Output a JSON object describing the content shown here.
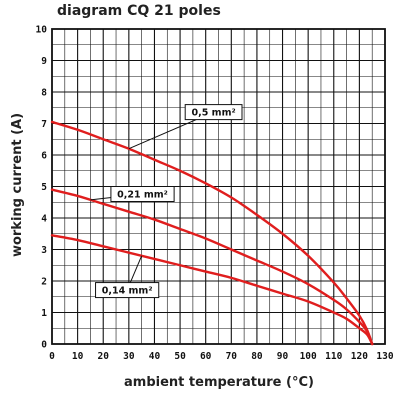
{
  "chart_data": {
    "type": "line",
    "title": "diagram CQ 21 poles",
    "xlabel": "ambient temperature (°C)",
    "ylabel": "working current (A)",
    "xlim": [
      0,
      130
    ],
    "ylim": [
      0,
      10
    ],
    "x_ticks": [
      "0",
      "10",
      "20",
      "30",
      "40",
      "50",
      "60",
      "70",
      "80",
      "90",
      "100",
      "110",
      "120",
      "130"
    ],
    "y_ticks": [
      "0",
      "1",
      "2",
      "3",
      "4",
      "5",
      "6",
      "7",
      "8",
      "9",
      "10"
    ],
    "grid": true,
    "series": [
      {
        "name": "0,5 mm²",
        "color": "#e01e1e",
        "x": [
          0,
          10,
          20,
          30,
          40,
          50,
          60,
          70,
          80,
          90,
          100,
          110,
          115,
          120,
          123,
          125
        ],
        "y": [
          7.05,
          6.8,
          6.5,
          6.2,
          5.85,
          5.5,
          5.1,
          4.65,
          4.1,
          3.5,
          2.8,
          1.95,
          1.45,
          0.9,
          0.45,
          0.0
        ]
      },
      {
        "name": "0,21 mm²",
        "color": "#e01e1e",
        "x": [
          0,
          10,
          20,
          30,
          40,
          50,
          60,
          70,
          80,
          90,
          100,
          110,
          115,
          120,
          123,
          125
        ],
        "y": [
          4.9,
          4.7,
          4.45,
          4.2,
          3.95,
          3.65,
          3.35,
          3.0,
          2.65,
          2.3,
          1.9,
          1.4,
          1.1,
          0.7,
          0.4,
          0.0
        ]
      },
      {
        "name": "0,14 mm²",
        "color": "#e01e1e",
        "x": [
          0,
          10,
          20,
          30,
          40,
          50,
          60,
          70,
          80,
          90,
          100,
          110,
          115,
          120,
          123,
          125
        ],
        "y": [
          3.45,
          3.3,
          3.1,
          2.9,
          2.7,
          2.5,
          2.3,
          2.1,
          1.85,
          1.6,
          1.35,
          1.0,
          0.8,
          0.5,
          0.3,
          0.0
        ]
      }
    ],
    "annotations": [
      {
        "label": "0,5 mm²",
        "series": 0,
        "anchor_x": 30,
        "box_at": [
          52,
          7.6
        ]
      },
      {
        "label": "0,21 mm²",
        "series": 1,
        "anchor_x": 15,
        "box_at": [
          23,
          5.0
        ]
      },
      {
        "label": "0,14 mm²",
        "series": 2,
        "anchor_x": 35,
        "box_at": [
          17,
          1.95
        ]
      }
    ]
  }
}
